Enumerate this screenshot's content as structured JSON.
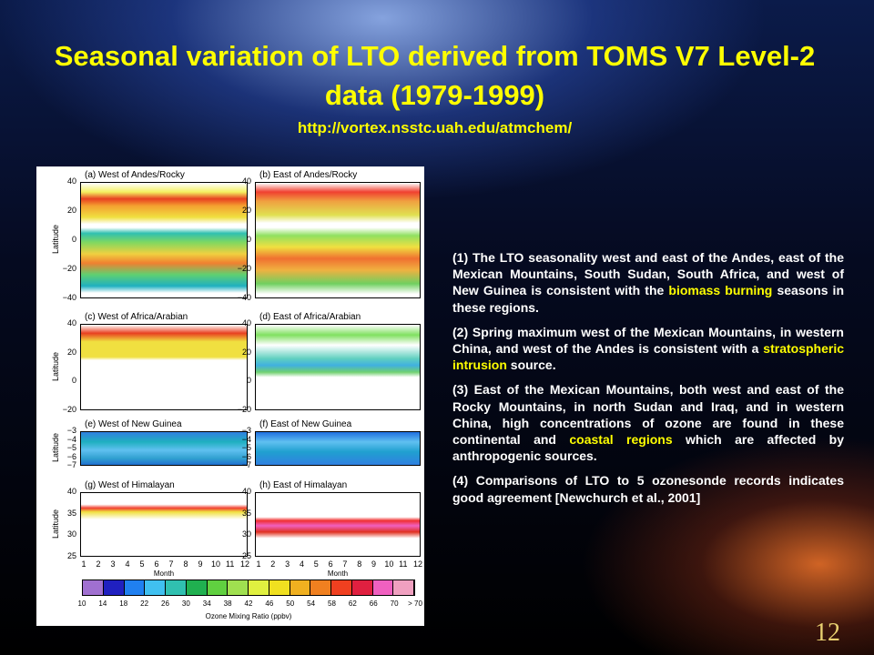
{
  "title": "Seasonal variation of LTO derived from TOMS V7 Level-2 data (1979-1999)",
  "url": "http://vortex.nsstc.uah.edu/atmchem/",
  "figure": {
    "panels": [
      {
        "label": "(a) West of Andes/Rocky",
        "yticks": [
          "40",
          "20",
          "0",
          "−20",
          "−40"
        ]
      },
      {
        "label": "(b) East of Andes/Rocky",
        "yticks": [
          "40",
          "20",
          "0",
          "−20",
          "−40"
        ]
      },
      {
        "label": "(c) West of Africa/Arabian",
        "yticks": [
          "40",
          "20",
          "0",
          "−20"
        ]
      },
      {
        "label": "(d) East of Africa/Arabian",
        "yticks": [
          "40",
          "20",
          "0",
          "−20"
        ]
      },
      {
        "label": "(e) West of New Guinea",
        "yticks": [
          "−3",
          "−4",
          "−5",
          "−6",
          "−7"
        ]
      },
      {
        "label": "(f) East of New Guinea",
        "yticks": [
          "−3",
          "−4",
          "−5",
          "−6",
          "−7"
        ]
      },
      {
        "label": "(g) West of Himalayan",
        "yticks": [
          "40",
          "35",
          "30",
          "25"
        ]
      },
      {
        "label": "(h) East of Himalayan",
        "yticks": [
          "40",
          "35",
          "30",
          "25"
        ]
      }
    ],
    "ylabel": "Latitude",
    "months": [
      "1",
      "2",
      "3",
      "4",
      "5",
      "6",
      "7",
      "8",
      "9",
      "10",
      "11",
      "12"
    ],
    "xlabel": "Month",
    "colorbar": {
      "labels": [
        "10",
        "14",
        "18",
        "22",
        "26",
        "30",
        "34",
        "38",
        "42",
        "46",
        "50",
        "54",
        "58",
        "62",
        "66",
        "70",
        "> 70"
      ],
      "title": "Ozone Mixing Ratio (ppbv)"
    }
  },
  "paragraphs": [
    [
      {
        "text": "(1) The LTO seasonality west and east of the Andes, east of the Mexican Mountains, South Sudan, South Africa, and west of New Guinea is consistent with the "
      },
      {
        "text": "biomass burning",
        "highlight": true
      },
      {
        "text": " seasons in these regions."
      }
    ],
    [
      {
        "text": "(2) Spring maximum west of the Mexican Mountains, in western China, and west of the Andes is consistent with a "
      },
      {
        "text": "stratospheric intrusion",
        "highlight": true
      },
      {
        "text": " source."
      }
    ],
    [
      {
        "text": "(3) East of the Mexican Mountains, both west and east of the Rocky Mountains, in north Sudan and Iraq, and in western China, high concentrations of ozone are found in these continental and "
      },
      {
        "text": "coastal regions",
        "highlight": true
      },
      {
        "text": " which are affected by anthropogenic sources."
      }
    ],
    [
      {
        "text": "(4) Comparisons of LTO to 5 ozonesonde records indicates good agreement [Newchurch et al., 2001]"
      }
    ]
  ],
  "page_number": "12"
}
